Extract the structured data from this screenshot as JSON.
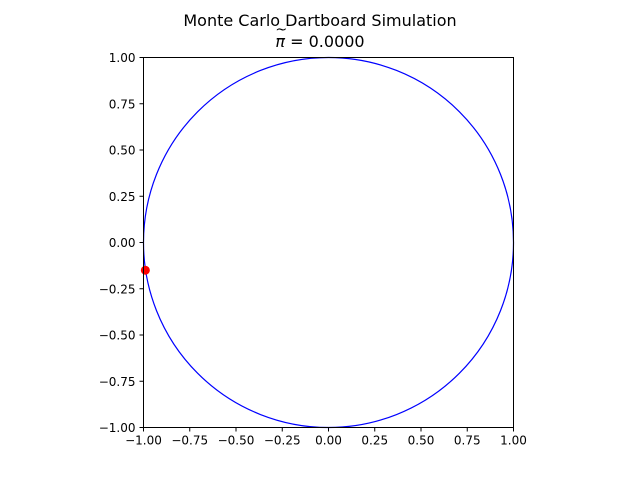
{
  "chart_data": {
    "type": "scatter",
    "title": "Monte Carlo Dartboard Simulation",
    "subtitle_symbol": "π",
    "subtitle_value": "= 0.0000",
    "xlim": [
      -1.0,
      1.0
    ],
    "ylim": [
      -1.0,
      1.0
    ],
    "xticks": [
      -1.0,
      -0.75,
      -0.5,
      -0.25,
      0.0,
      0.25,
      0.5,
      0.75,
      1.0
    ],
    "yticks": [
      -1.0,
      -0.75,
      -0.5,
      -0.25,
      0.0,
      0.25,
      0.5,
      0.75,
      1.0
    ],
    "xtick_labels": [
      "−1.00",
      "−0.75",
      "−0.50",
      "−0.25",
      "0.00",
      "0.25",
      "0.50",
      "0.75",
      "1.00"
    ],
    "ytick_labels": [
      "−1.00",
      "−0.75",
      "−0.50",
      "−0.25",
      "0.00",
      "0.25",
      "0.50",
      "0.75",
      "1.00"
    ],
    "grid": false,
    "circle": {
      "center": [
        0.0,
        0.0
      ],
      "radius": 1.0,
      "color": "#0000ff"
    },
    "points": [
      {
        "x": -0.99,
        "y": -0.15,
        "color": "#ff0000"
      }
    ]
  }
}
